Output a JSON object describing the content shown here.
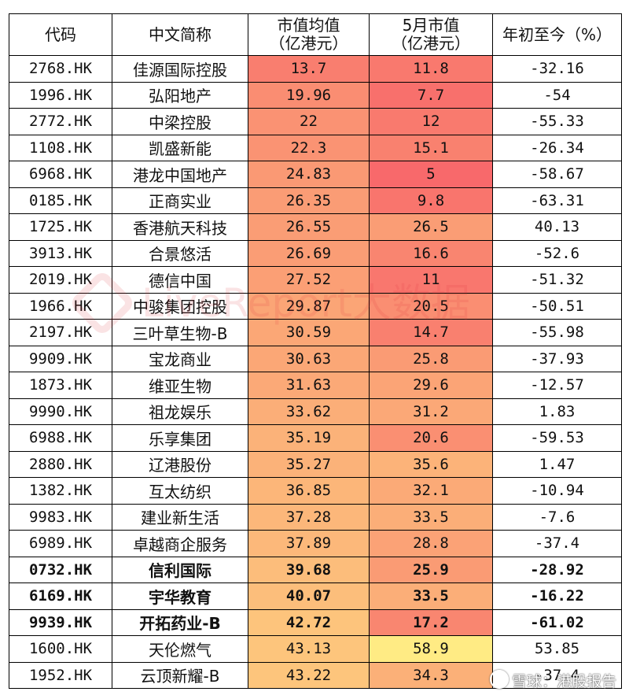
{
  "headers": {
    "code": "代码",
    "name": "中文简称",
    "avg_cap_line1": "市值均值",
    "avg_cap_line2": "（亿港元）",
    "may_cap_line1": "5月市值",
    "may_cap_line2": "（亿港元）",
    "ytd": "年初至今（%）"
  },
  "colors": {
    "scale_low": "#F8696B",
    "scale_mid": "#FBAA77",
    "scale_high": "#FFEB84"
  },
  "rows": [
    {
      "code": "2768.HK",
      "name": "佳源国际控股",
      "avg": "13.7",
      "may": "11.8",
      "ytd": "-32.16",
      "bold": false
    },
    {
      "code": "1996.HK",
      "name": "弘阳地产",
      "avg": "19.96",
      "may": "7.7",
      "ytd": "-54",
      "bold": false
    },
    {
      "code": "2772.HK",
      "name": "中梁控股",
      "avg": "22",
      "may": "12",
      "ytd": "-55.33",
      "bold": false
    },
    {
      "code": "1108.HK",
      "name": "凯盛新能",
      "avg": "22.3",
      "may": "15.1",
      "ytd": "-26.34",
      "bold": false
    },
    {
      "code": "6968.HK",
      "name": "港龙中国地产",
      "avg": "24.83",
      "may": "5",
      "ytd": "-58.67",
      "bold": false
    },
    {
      "code": "0185.HK",
      "name": "正商实业",
      "avg": "26.35",
      "may": "9.8",
      "ytd": "-63.31",
      "bold": false
    },
    {
      "code": "1725.HK",
      "name": "香港航天科技",
      "avg": "26.55",
      "may": "26.5",
      "ytd": "40.13",
      "bold": false
    },
    {
      "code": "3913.HK",
      "name": "合景悠活",
      "avg": "26.69",
      "may": "16.6",
      "ytd": "-52.6",
      "bold": false
    },
    {
      "code": "2019.HK",
      "name": "德信中国",
      "avg": "27.52",
      "may": "11",
      "ytd": "-51.32",
      "bold": false
    },
    {
      "code": "1966.HK",
      "name": "中骏集团控股",
      "avg": "29.87",
      "may": "20.5",
      "ytd": "-50.51",
      "bold": false
    },
    {
      "code": "2197.HK",
      "name": "三叶草生物-B",
      "avg": "30.59",
      "may": "14.7",
      "ytd": "-55.98",
      "bold": false
    },
    {
      "code": "9909.HK",
      "name": "宝龙商业",
      "avg": "30.63",
      "may": "25.8",
      "ytd": "-37.93",
      "bold": false
    },
    {
      "code": "1873.HK",
      "name": "维亚生物",
      "avg": "31.63",
      "may": "29.6",
      "ytd": "-12.57",
      "bold": false
    },
    {
      "code": "9990.HK",
      "name": "祖龙娱乐",
      "avg": "33.62",
      "may": "31.2",
      "ytd": "1.83",
      "bold": false
    },
    {
      "code": "6988.HK",
      "name": "乐享集团",
      "avg": "35.19",
      "may": "20.6",
      "ytd": "-59.53",
      "bold": false
    },
    {
      "code": "2880.HK",
      "name": "辽港股份",
      "avg": "35.27",
      "may": "35.6",
      "ytd": "1.47",
      "bold": false
    },
    {
      "code": "1382.HK",
      "name": "互太纺织",
      "avg": "36.85",
      "may": "32.1",
      "ytd": "-10.94",
      "bold": false
    },
    {
      "code": "9983.HK",
      "name": "建业新生活",
      "avg": "37.28",
      "may": "33.5",
      "ytd": "-7.6",
      "bold": false
    },
    {
      "code": "6989.HK",
      "name": "卓越商企服务",
      "avg": "37.89",
      "may": "28.8",
      "ytd": "-37.4",
      "bold": false
    },
    {
      "code": "0732.HK",
      "name": "信利国际",
      "avg": "39.68",
      "may": "25.9",
      "ytd": "-28.92",
      "bold": true
    },
    {
      "code": "6169.HK",
      "name": "宇华教育",
      "avg": "40.07",
      "may": "33.5",
      "ytd": "-16.22",
      "bold": true
    },
    {
      "code": "9939.HK",
      "name": "开拓药业-B",
      "avg": "42.72",
      "may": "17.2",
      "ytd": "-61.02",
      "bold": true
    },
    {
      "code": "1600.HK",
      "name": "天伦燃气",
      "avg": "43.13",
      "may": "58.9",
      "ytd": "53.85",
      "bold": false
    },
    {
      "code": "1952.HK",
      "name": "云顶新耀-B",
      "avg": "43.22",
      "may": "34.3",
      "ytd": "-37.4",
      "bold": false
    }
  ],
  "watermark": {
    "text": "LiveReport大数据"
  },
  "credit": {
    "text": "雪球：港股报告"
  }
}
